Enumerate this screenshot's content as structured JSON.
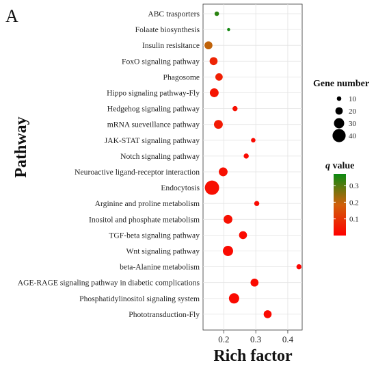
{
  "panel_label": "A",
  "chart_data": {
    "type": "scatter",
    "xlabel": "Rich factor",
    "ylabel": "Pathway",
    "xlim": [
      0.135,
      0.445
    ],
    "xticks": [
      0.2,
      0.3,
      0.4
    ],
    "xtick_labels": [
      "0.2",
      "0.3",
      "0.4"
    ],
    "grid": true,
    "categories": [
      "ABC trasporters",
      "Folaate biosynthesis",
      "Insulin resisitance",
      "FoxO signaling pathway",
      "Phagosome",
      "Hippo signaling pathway-Fly",
      "Hedgehog signaling pathway",
      "mRNA sueveillance pathway",
      "JAK-STAT signaling pathway",
      "Notch signaling pathway",
      "Neuroactive ligand-receptor interaction",
      "Endocytosis",
      "Arginine and proline metabolism",
      "Inositol and phosphate metabolism",
      "TGF-beta signaling pathway",
      "Wnt signaling pathway",
      "beta-Alanine metabolism",
      "AGE-RAGE signaling pathway in diabetic complications",
      "Phosphatidylinositol signaling system",
      "Phototransduction-Fly"
    ],
    "rich_factor": [
      0.178,
      0.215,
      0.152,
      0.168,
      0.185,
      0.17,
      0.235,
      0.183,
      0.292,
      0.27,
      0.198,
      0.163,
      0.303,
      0.213,
      0.26,
      0.213,
      0.435,
      0.296,
      0.232,
      0.337
    ],
    "gene_number": [
      10,
      5,
      22,
      22,
      20,
      25,
      12,
      25,
      10,
      12,
      25,
      44,
      12,
      25,
      22,
      30,
      12,
      22,
      30,
      22
    ],
    "q_value": [
      0.34,
      0.36,
      0.2,
      0.07,
      0.06,
      0.04,
      0.03,
      0.05,
      0.02,
      0.02,
      0.03,
      0.03,
      0.02,
      0.03,
      0.02,
      0.02,
      0.01,
      0.02,
      0.02,
      0.02
    ],
    "size_legend": {
      "title": "Gene number",
      "values": [
        10,
        20,
        30,
        40
      ],
      "labels": [
        "10",
        "20",
        "30",
        "40"
      ]
    },
    "color_legend": {
      "title_italic": "q",
      "title_rest": " value",
      "min": 0.0,
      "max": 0.37,
      "ticks": [
        0.1,
        0.2,
        0.3
      ],
      "tick_labels": [
        "0.1",
        "0.2",
        "0.3"
      ],
      "low_color": "#ff0000",
      "high_color": "#0a8a12"
    }
  }
}
